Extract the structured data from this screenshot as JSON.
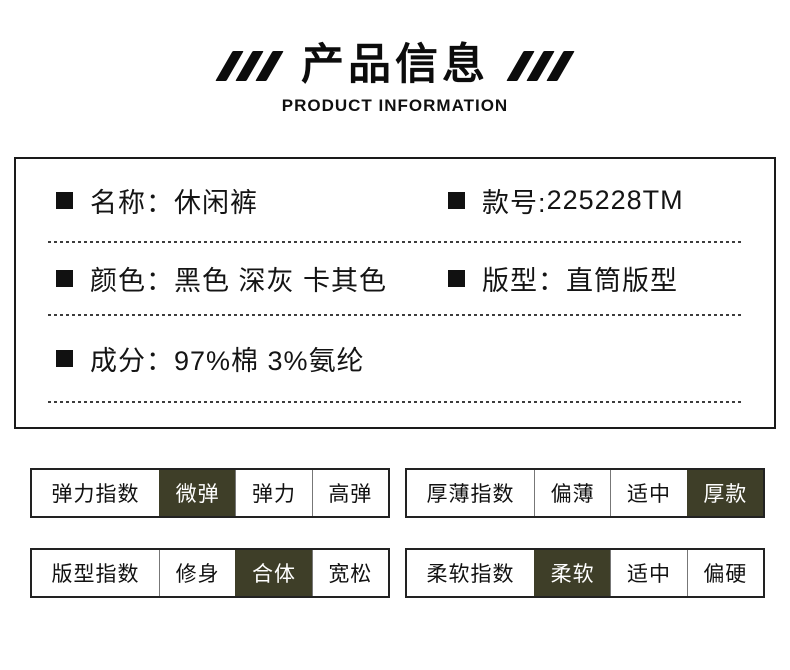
{
  "header": {
    "title": "产品信息",
    "subtitle": "PRODUCT INFORMATION",
    "slash_icon": "triple-slash"
  },
  "info_box": {
    "rows": [
      {
        "items": [
          {
            "label": "名称：",
            "value": "休闲裤"
          },
          {
            "label": "款号:",
            "value": "225228TM"
          }
        ]
      },
      {
        "items": [
          {
            "label": "颜色：",
            "value": "黑色 深灰 卡其色"
          },
          {
            "label": "版型：",
            "value": "直筒版型"
          }
        ]
      },
      {
        "items": [
          {
            "label": "成分：",
            "value": "97%棉 3%氨纶"
          }
        ]
      }
    ]
  },
  "index_tables": [
    {
      "label": "弹力指数",
      "options": [
        "微弹",
        "弹力",
        "高弹"
      ],
      "selected_index": 0
    },
    {
      "label": "厚薄指数",
      "options": [
        "偏薄",
        "适中",
        "厚款"
      ],
      "selected_index": 2
    },
    {
      "label": "版型指数",
      "options": [
        "修身",
        "合体",
        "宽松"
      ],
      "selected_index": 1
    },
    {
      "label": "柔软指数",
      "options": [
        "柔软",
        "适中",
        "偏硬"
      ],
      "selected_index": 0
    }
  ],
  "colors": {
    "text": "#111111",
    "border": "#1a1a1a",
    "selected_bg": "#3e3e28",
    "selected_text": "#ffffff"
  }
}
